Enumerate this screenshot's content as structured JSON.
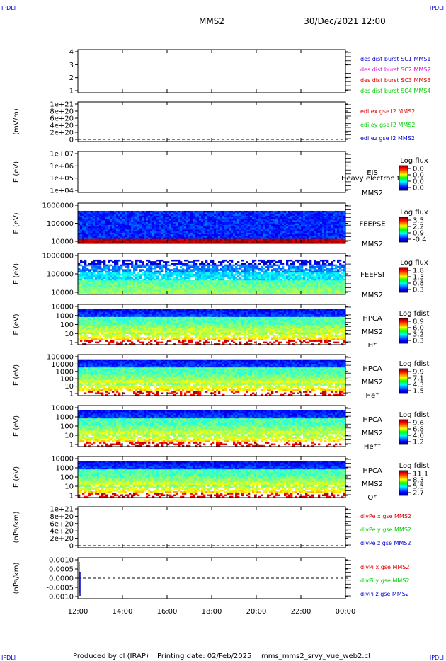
{
  "header": {
    "corner_label": "IPDLI",
    "spacecraft": "MMS2",
    "datetime": "30/Dec/2021 12:00"
  },
  "footer": {
    "credit": "Produced by cl (IRAP)",
    "printing": "Printing date: 02/Feb/2025",
    "script": "mms_mms2_srvy_vue_web2.cl"
  },
  "colors": {
    "red": "#dd0000",
    "magenta": "#dd00dd",
    "green": "#00cc00",
    "blue": "#0000cc"
  },
  "time_axis": {
    "ticks": [
      "12:00",
      "14:00",
      "16:00",
      "18:00",
      "20:00",
      "22:00",
      "00:00"
    ]
  },
  "chart_data": [
    {
      "type": "line",
      "id": "burst",
      "yticks": [
        "4",
        "3",
        "2",
        "1"
      ],
      "legend": [
        {
          "text": "des dist burst SC1 MMS1",
          "color": "#0000cc"
        },
        {
          "text": "des dist burst SC2 MMS2",
          "color": "#dd00dd"
        },
        {
          "text": "des dist burst SC3 MMS3",
          "color": "#dd0000"
        },
        {
          "text": "des dist burst SC4 MMS4",
          "color": "#00cc00"
        }
      ]
    },
    {
      "type": "line",
      "id": "edi",
      "ylabel": "(mV/m)",
      "yticks": [
        "1e+21",
        "8e+20",
        "6e+20",
        "4e+20",
        "2e+20",
        "0"
      ],
      "legend": [
        {
          "text": "edi ex gse l2 MMS2",
          "color": "#dd0000"
        },
        {
          "text": "edi ey gse l2 MMS2",
          "color": "#00cc00"
        },
        {
          "text": "edi ez gse l2 MMS2",
          "color": "#0000cc"
        }
      ]
    },
    {
      "type": "heatmap",
      "id": "eis",
      "ylabel": "E (eV)",
      "yticks": [
        "1e+07",
        "1e+06",
        "1e+05",
        "1e+04"
      ],
      "labels": [
        "EIS",
        "Heavy electron tof",
        "MMS2"
      ],
      "cbar_title": "Log flux",
      "cbar_ticks": [
        "0.0",
        "0.0",
        "0.0",
        "0.0"
      ]
    },
    {
      "type": "heatmap",
      "id": "feepse",
      "ylabel": "E (eV)",
      "yticks": [
        "1000000",
        "100000",
        "10000"
      ],
      "labels": [
        "FEEPSE",
        "MMS2"
      ],
      "cbar_title": "Log flux",
      "cbar_ticks": [
        "3.5",
        "2.2",
        "0.9",
        "-0.4"
      ]
    },
    {
      "type": "heatmap",
      "id": "feepsi",
      "ylabel": "E (eV)",
      "yticks": [
        "1000000",
        "100000",
        "10000"
      ],
      "labels": [
        "FEEPSI",
        "MMS2"
      ],
      "cbar_title": "Log flux",
      "cbar_ticks": [
        "1.8",
        "1.3",
        "0.8",
        "0.3"
      ]
    },
    {
      "type": "heatmap",
      "id": "hpca_h",
      "ylabel": "E (eV)",
      "yticks": [
        "10000",
        "1000",
        "100",
        "10",
        "1"
      ],
      "labels": [
        "HPCA",
        "MMS2",
        "H⁺"
      ],
      "cbar_title": "Log fdist",
      "cbar_ticks": [
        "8.9",
        "6.0",
        "3.2",
        "0.3"
      ]
    },
    {
      "type": "heatmap",
      "id": "hpca_he",
      "ylabel": "E (eV)",
      "yticks": [
        "100000",
        "10000",
        "1000",
        "100",
        "10",
        "1"
      ],
      "labels": [
        "HPCA",
        "MMS2",
        "He⁺"
      ],
      "cbar_title": "Log fdist",
      "cbar_ticks": [
        "9.9",
        "7.1",
        "4.3",
        "1.5"
      ]
    },
    {
      "type": "heatmap",
      "id": "hpca_hepp",
      "ylabel": "E (eV)",
      "yticks": [
        "10000",
        "1000",
        "100",
        "10",
        "1"
      ],
      "labels": [
        "HPCA",
        "MMS2",
        "He⁺⁺"
      ],
      "cbar_title": "Log fdist",
      "cbar_ticks": [
        "9.6",
        "6.8",
        "4.0",
        "1.2"
      ]
    },
    {
      "type": "heatmap",
      "id": "hpca_o",
      "ylabel": "E (eV)",
      "yticks": [
        "10000",
        "1000",
        "100",
        "10",
        "1"
      ],
      "labels": [
        "HPCA",
        "MMS2",
        "O⁺"
      ],
      "cbar_title": "Log fdist",
      "cbar_ticks": [
        "11.1",
        "8.3",
        "5.5",
        "2.7"
      ]
    },
    {
      "type": "line",
      "id": "divpe",
      "ylabel": "(nPa/km)",
      "yticks": [
        "1e+21",
        "8e+20",
        "6e+20",
        "4e+20",
        "2e+20",
        "0"
      ],
      "legend": [
        {
          "text": "divPe x gse MMS2",
          "color": "#dd0000"
        },
        {
          "text": "divPe y gse MMS2",
          "color": "#00cc00"
        },
        {
          "text": "divPe z gse MMS2",
          "color": "#0000cc"
        }
      ]
    },
    {
      "type": "line",
      "id": "divpi",
      "ylabel": "(nPa/km)",
      "yticks": [
        "0.0010",
        "0.0005",
        "0.0000",
        "-0.0005",
        "-0.0010"
      ],
      "legend": [
        {
          "text": "divPi x gse MMS2",
          "color": "#dd0000"
        },
        {
          "text": "divPi y gse MMS2",
          "color": "#00cc00"
        },
        {
          "text": "divPi z gse MMS2",
          "color": "#0000cc"
        }
      ]
    }
  ]
}
